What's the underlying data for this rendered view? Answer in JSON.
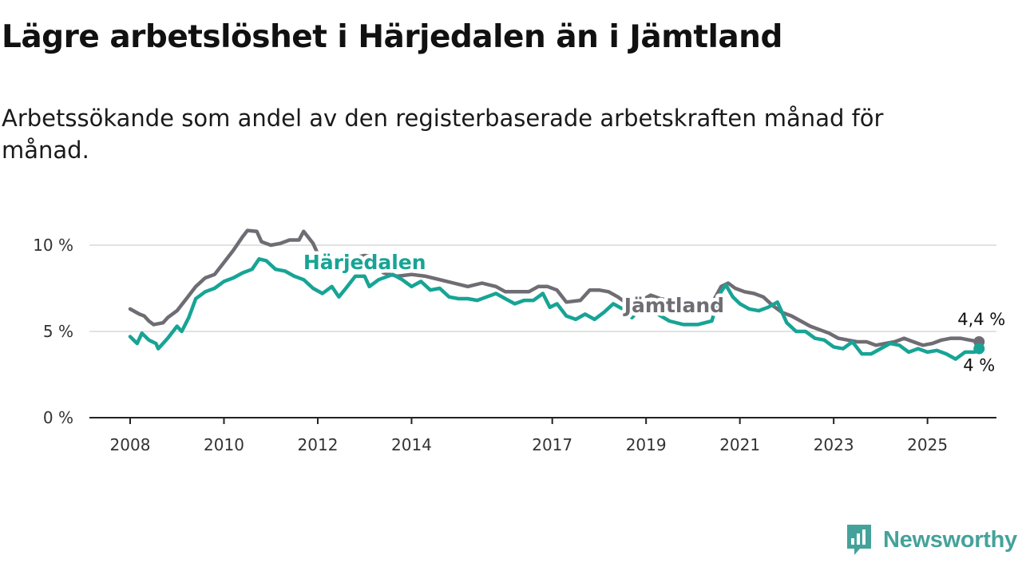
{
  "title": "Lägre arbetslöshet i Härjedalen än i Jämtland",
  "subtitle": "Arbetssökande som andel av den registerbaserade arbetskraften månad för månad.",
  "brand": {
    "name": "Newsworthy",
    "icon": "newsworthy-logo-icon",
    "color": "#45a29a"
  },
  "chart_data": {
    "type": "line",
    "title": "Lägre arbetslöshet i Härjedalen än i Jämtland",
    "subtitle": "Arbetssökande som andel av den registerbaserade arbetskraften månad för månad.",
    "xlabel": "",
    "ylabel": "",
    "x_range": [
      2008.0,
      2025.5
    ],
    "ylim": [
      0,
      10.5
    ],
    "y_ticks": [
      0,
      5,
      10
    ],
    "y_tick_labels": [
      "0 %",
      "5 %",
      "10 %"
    ],
    "x_ticks": [
      2008,
      2010,
      2012,
      2014,
      2017,
      2019,
      2021,
      2023,
      2025
    ],
    "x_tick_labels": [
      "2008",
      "2010",
      "2012",
      "2014",
      "2017",
      "2019",
      "2021",
      "2023",
      "2025"
    ],
    "grid": "horizontal",
    "series": [
      {
        "name": "Jämtland",
        "color": "#6f6c73",
        "end_label": "4,4 %",
        "points": [
          [
            2008.0,
            6.3
          ],
          [
            2008.2,
            6.0
          ],
          [
            2008.3,
            5.9
          ],
          [
            2008.4,
            5.6
          ],
          [
            2008.5,
            5.4
          ],
          [
            2008.7,
            5.5
          ],
          [
            2008.8,
            5.8
          ],
          [
            2009.0,
            6.2
          ],
          [
            2009.2,
            6.9
          ],
          [
            2009.4,
            7.6
          ],
          [
            2009.6,
            8.1
          ],
          [
            2009.8,
            8.3
          ],
          [
            2010.0,
            9.0
          ],
          [
            2010.2,
            9.7
          ],
          [
            2010.4,
            10.5
          ],
          [
            2010.5,
            10.85
          ],
          [
            2010.7,
            10.8
          ],
          [
            2010.8,
            10.2
          ],
          [
            2011.0,
            10.0
          ],
          [
            2011.2,
            10.1
          ],
          [
            2011.4,
            10.3
          ],
          [
            2011.6,
            10.3
          ],
          [
            2011.7,
            10.8
          ],
          [
            2011.9,
            10.1
          ],
          [
            2012.0,
            9.5
          ],
          [
            2012.2,
            9.0
          ],
          [
            2012.4,
            9.1
          ],
          [
            2012.6,
            9.1
          ],
          [
            2012.8,
            9.3
          ],
          [
            2013.0,
            9.4
          ],
          [
            2013.2,
            9.3
          ],
          [
            2013.4,
            8.4
          ],
          [
            2013.7,
            8.2
          ],
          [
            2014.0,
            8.3
          ],
          [
            2014.3,
            8.2
          ],
          [
            2014.6,
            8.0
          ],
          [
            2014.9,
            7.8
          ],
          [
            2015.2,
            7.6
          ],
          [
            2015.5,
            7.8
          ],
          [
            2015.8,
            7.6
          ],
          [
            2016.0,
            7.3
          ],
          [
            2016.3,
            7.3
          ],
          [
            2016.5,
            7.3
          ],
          [
            2016.7,
            7.6
          ],
          [
            2016.9,
            7.6
          ],
          [
            2017.1,
            7.4
          ],
          [
            2017.3,
            6.7
          ],
          [
            2017.6,
            6.8
          ],
          [
            2017.8,
            7.4
          ],
          [
            2018.0,
            7.4
          ],
          [
            2018.2,
            7.3
          ],
          [
            2018.4,
            7.0
          ],
          [
            2018.6,
            6.6
          ],
          [
            2018.9,
            6.8
          ],
          [
            2019.1,
            7.1
          ],
          [
            2019.3,
            6.9
          ],
          [
            2019.5,
            6.8
          ],
          [
            2020.0,
            6.5
          ],
          [
            2020.4,
            6.6
          ],
          [
            2020.6,
            7.6
          ],
          [
            2020.75,
            7.8
          ],
          [
            2020.9,
            7.5
          ],
          [
            2021.1,
            7.3
          ],
          [
            2021.3,
            7.2
          ],
          [
            2021.5,
            7.0
          ],
          [
            2021.7,
            6.5
          ],
          [
            2021.9,
            6.1
          ],
          [
            2022.1,
            5.9
          ],
          [
            2022.3,
            5.6
          ],
          [
            2022.5,
            5.3
          ],
          [
            2022.7,
            5.1
          ],
          [
            2022.9,
            4.9
          ],
          [
            2023.1,
            4.6
          ],
          [
            2023.3,
            4.5
          ],
          [
            2023.5,
            4.4
          ],
          [
            2023.7,
            4.4
          ],
          [
            2023.9,
            4.2
          ],
          [
            2024.1,
            4.3
          ],
          [
            2024.3,
            4.4
          ],
          [
            2024.5,
            4.6
          ],
          [
            2024.7,
            4.4
          ],
          [
            2024.9,
            4.2
          ],
          [
            2025.1,
            4.3
          ],
          [
            2025.3,
            4.5
          ],
          [
            2025.5,
            4.6
          ],
          [
            2025.7,
            4.6
          ],
          [
            2025.9,
            4.5
          ],
          [
            2026.1,
            4.4
          ]
        ]
      },
      {
        "name": "Härjedalen",
        "color": "#17a495",
        "end_label": "4 %",
        "points": [
          [
            2008.0,
            4.7
          ],
          [
            2008.15,
            4.3
          ],
          [
            2008.25,
            4.9
          ],
          [
            2008.4,
            4.5
          ],
          [
            2008.55,
            4.3
          ],
          [
            2008.6,
            4.0
          ],
          [
            2008.8,
            4.6
          ],
          [
            2009.0,
            5.3
          ],
          [
            2009.1,
            5.0
          ],
          [
            2009.25,
            5.8
          ],
          [
            2009.4,
            6.9
          ],
          [
            2009.6,
            7.3
          ],
          [
            2009.8,
            7.5
          ],
          [
            2010.0,
            7.9
          ],
          [
            2010.2,
            8.1
          ],
          [
            2010.4,
            8.4
          ],
          [
            2010.6,
            8.6
          ],
          [
            2010.75,
            9.2
          ],
          [
            2010.9,
            9.1
          ],
          [
            2011.1,
            8.6
          ],
          [
            2011.3,
            8.5
          ],
          [
            2011.5,
            8.2
          ],
          [
            2011.7,
            8.0
          ],
          [
            2011.9,
            7.5
          ],
          [
            2012.1,
            7.2
          ],
          [
            2012.3,
            7.6
          ],
          [
            2012.45,
            7.0
          ],
          [
            2012.6,
            7.5
          ],
          [
            2012.8,
            8.2
          ],
          [
            2013.0,
            8.2
          ],
          [
            2013.1,
            7.6
          ],
          [
            2013.3,
            8.0
          ],
          [
            2013.6,
            8.3
          ],
          [
            2013.8,
            8.0
          ],
          [
            2014.0,
            7.6
          ],
          [
            2014.2,
            7.9
          ],
          [
            2014.4,
            7.4
          ],
          [
            2014.6,
            7.5
          ],
          [
            2014.8,
            7.0
          ],
          [
            2015.0,
            6.9
          ],
          [
            2015.2,
            6.9
          ],
          [
            2015.4,
            6.8
          ],
          [
            2015.6,
            7.0
          ],
          [
            2015.8,
            7.2
          ],
          [
            2016.0,
            6.9
          ],
          [
            2016.2,
            6.6
          ],
          [
            2016.4,
            6.8
          ],
          [
            2016.6,
            6.8
          ],
          [
            2016.8,
            7.2
          ],
          [
            2016.95,
            6.4
          ],
          [
            2017.1,
            6.6
          ],
          [
            2017.3,
            5.9
          ],
          [
            2017.5,
            5.7
          ],
          [
            2017.7,
            6.0
          ],
          [
            2017.9,
            5.7
          ],
          [
            2018.1,
            6.1
          ],
          [
            2018.3,
            6.6
          ],
          [
            2018.5,
            6.3
          ],
          [
            2018.7,
            5.8
          ],
          [
            2018.9,
            6.4
          ],
          [
            2019.05,
            6.6
          ],
          [
            2019.25,
            6.0
          ],
          [
            2019.5,
            5.6
          ],
          [
            2019.8,
            5.4
          ],
          [
            2020.1,
            5.4
          ],
          [
            2020.4,
            5.6
          ],
          [
            2020.6,
            7.3
          ],
          [
            2020.7,
            7.7
          ],
          [
            2020.85,
            7.0
          ],
          [
            2021.0,
            6.6
          ],
          [
            2021.2,
            6.3
          ],
          [
            2021.4,
            6.2
          ],
          [
            2021.6,
            6.4
          ],
          [
            2021.8,
            6.7
          ],
          [
            2022.0,
            5.5
          ],
          [
            2022.2,
            5.0
          ],
          [
            2022.4,
            5.0
          ],
          [
            2022.6,
            4.6
          ],
          [
            2022.8,
            4.5
          ],
          [
            2023.0,
            4.1
          ],
          [
            2023.2,
            4.0
          ],
          [
            2023.4,
            4.4
          ],
          [
            2023.6,
            3.7
          ],
          [
            2023.8,
            3.7
          ],
          [
            2024.0,
            4.0
          ],
          [
            2024.2,
            4.3
          ],
          [
            2024.4,
            4.2
          ],
          [
            2024.6,
            3.8
          ],
          [
            2024.8,
            4.0
          ],
          [
            2025.0,
            3.8
          ],
          [
            2025.2,
            3.9
          ],
          [
            2025.4,
            3.7
          ],
          [
            2025.6,
            3.4
          ],
          [
            2025.8,
            3.8
          ],
          [
            2026.0,
            3.8
          ],
          [
            2026.1,
            4.0
          ]
        ]
      }
    ],
    "annotations": [
      {
        "text": "Härjedalen",
        "series": "Härjedalen",
        "at": [
          2013.0,
          8.6
        ]
      },
      {
        "text": "Jämtland",
        "series": "Jämtland",
        "at": [
          2019.6,
          6.1
        ]
      }
    ]
  }
}
